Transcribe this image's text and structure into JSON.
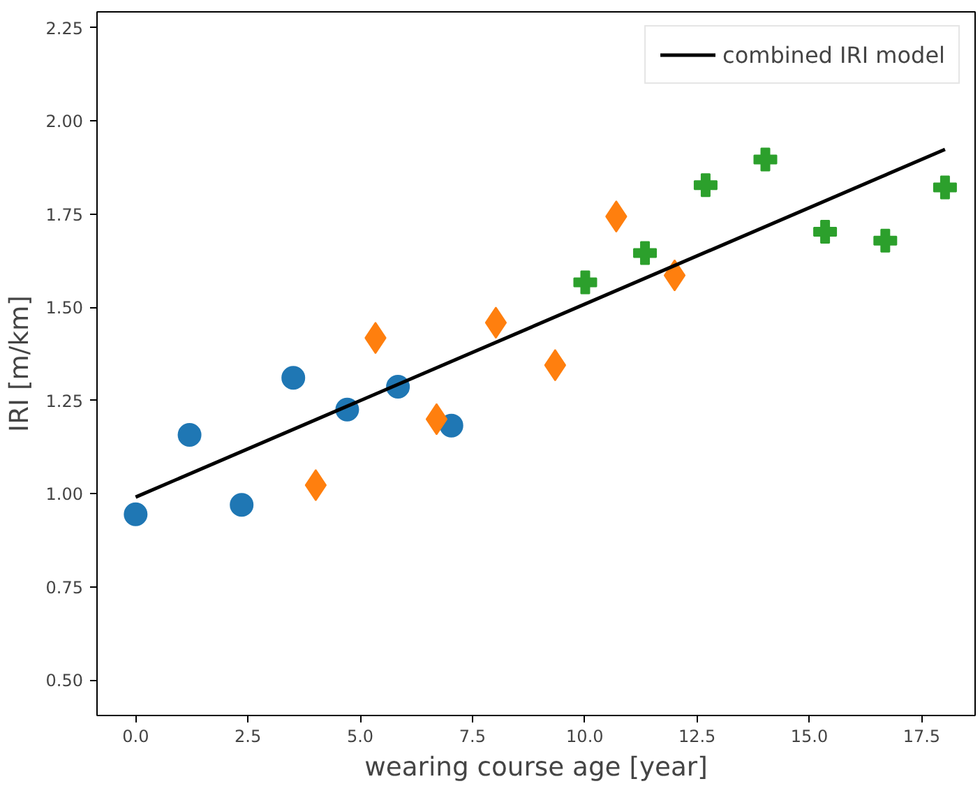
{
  "chart_data": {
    "type": "scatter",
    "xlabel": "wearing course age [year]",
    "ylabel": "IRI [m/km]",
    "xlim": [
      -0.86,
      18.69
    ],
    "ylim": [
      0.405,
      2.293
    ],
    "xticks": [
      {
        "value": 0,
        "label": "0.0"
      },
      2.5,
      {
        "value": 5,
        "label": "5.0"
      },
      7.5,
      {
        "value": 10,
        "label": "10.0"
      },
      12.5,
      {
        "value": 15,
        "label": "15.0"
      },
      17.5
    ],
    "yticks": [
      {
        "value": 0.5,
        "label": "0.50"
      },
      0.75,
      {
        "value": 1,
        "label": "1.00"
      },
      1.25,
      {
        "value": 1.5,
        "label": "1.50"
      },
      1.75,
      {
        "value": 2,
        "label": "2.00"
      },
      2.25
    ],
    "grid": false,
    "legend": "top right",
    "series": [
      {
        "marker": "circle",
        "color": "#1f77b4",
        "x": [
          0,
          1.2,
          2.36,
          3.51,
          4.71,
          5.84,
          7.03
        ],
        "values": [
          0.945,
          1.158,
          0.97,
          1.311,
          1.226,
          1.287,
          1.183
        ]
      },
      {
        "marker": "diamond",
        "color": "#ff7f0e",
        "x": [
          4.01,
          5.34,
          6.7,
          8.02,
          9.34,
          10.7,
          12.0
        ],
        "values": [
          1.023,
          1.418,
          1.2,
          1.459,
          1.345,
          1.744,
          1.586
        ]
      },
      {
        "marker": "cross",
        "color": "#2ca02c",
        "x": [
          10.01,
          11.34,
          12.69,
          14.02,
          15.35,
          16.69,
          18.02
        ],
        "values": [
          1.567,
          1.646,
          1.828,
          1.897,
          1.703,
          1.679,
          1.822
        ]
      },
      {
        "type": "line",
        "name": "combined IRI model",
        "color": "#000000",
        "line_style": "solid",
        "marker": "none",
        "x": [
          0,
          18.02
        ],
        "values": [
          0.991,
          1.924
        ]
      }
    ]
  }
}
